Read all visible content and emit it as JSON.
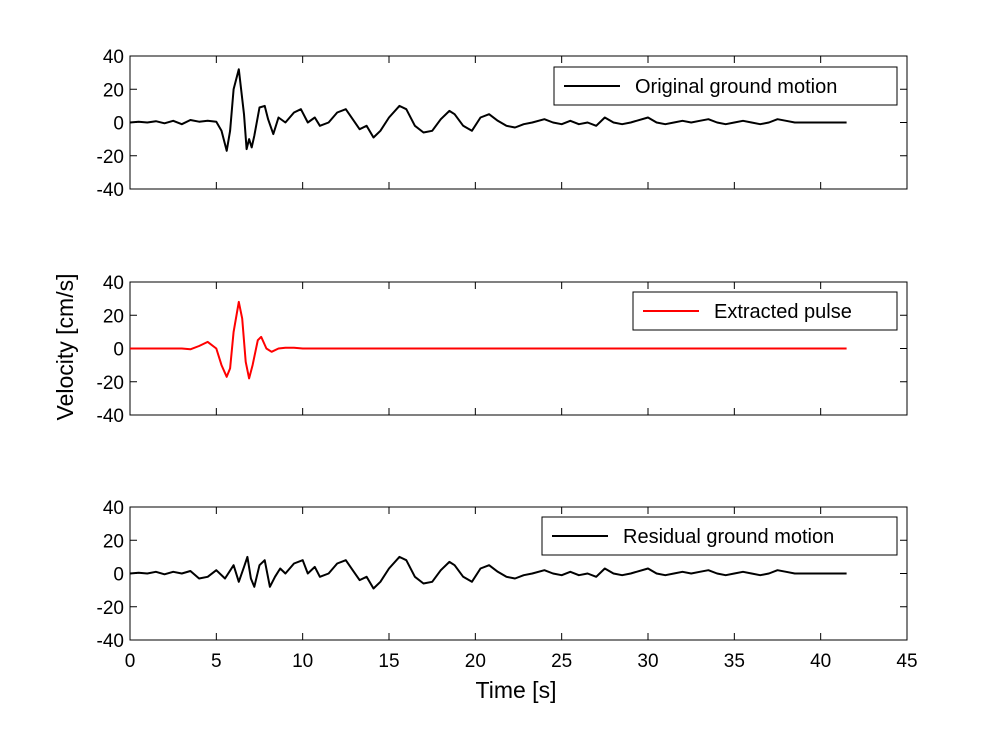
{
  "chart_data": {
    "type": "line",
    "xlabel": "Time [s]",
    "ylabel": "Velocity [cm/s]",
    "xlim": [
      0,
      45
    ],
    "xticks": [
      0,
      5,
      10,
      15,
      20,
      25,
      30,
      35,
      40,
      45
    ],
    "ylim": [
      -40,
      40
    ],
    "yticks": [
      40,
      20,
      0,
      -20,
      -40
    ],
    "grid": false,
    "panels": [
      {
        "legend": "Original ground motion",
        "color": "#000000",
        "x": [
          0,
          0.5,
          1,
          1.5,
          2,
          2.5,
          3,
          3.5,
          4,
          4.5,
          5,
          5.3,
          5.6,
          5.8,
          6.0,
          6.3,
          6.6,
          6.75,
          6.9,
          7.05,
          7.2,
          7.5,
          7.8,
          8.0,
          8.3,
          8.6,
          9.0,
          9.5,
          9.9,
          10.3,
          10.7,
          11.0,
          11.5,
          12.0,
          12.5,
          12.9,
          13.3,
          13.7,
          14.1,
          14.5,
          15.0,
          15.6,
          16.0,
          16.5,
          17.0,
          17.5,
          18.0,
          18.5,
          18.8,
          19.3,
          19.8,
          20.3,
          20.8,
          21.3,
          21.8,
          22.3,
          22.8,
          23.3,
          24.0,
          24.5,
          25.0,
          25.5,
          26.0,
          26.5,
          27.0,
          27.5,
          28.0,
          28.5,
          29.0,
          30.0,
          30.5,
          31.0,
          31.5,
          32.0,
          32.5,
          33.0,
          33.5,
          34.0,
          34.5,
          35.0,
          35.5,
          36.0,
          36.5,
          37.0,
          37.5,
          38.0,
          38.5,
          39.0,
          39.5,
          40.0,
          40.5,
          41.0,
          41.5
        ],
        "y": [
          0,
          0.5,
          0,
          0.8,
          -0.5,
          1,
          -1,
          1.5,
          0.5,
          1,
          0.5,
          -5,
          -17,
          -5,
          20,
          32,
          5,
          -16,
          -10,
          -15,
          -8,
          9,
          10,
          2,
          -7,
          3,
          0,
          6,
          8,
          0,
          3,
          -2,
          0,
          6,
          8,
          2,
          -4,
          -2,
          -9,
          -5,
          3,
          10,
          8,
          -2,
          -6,
          -5,
          2,
          7,
          5,
          -2,
          -5,
          3,
          5,
          1,
          -2,
          -3,
          -1,
          0,
          2,
          0,
          -1,
          1,
          -1,
          0,
          -2,
          3,
          0,
          -1,
          0,
          3,
          0,
          -1,
          0,
          1,
          0,
          1,
          2,
          0,
          -1,
          0,
          1,
          0,
          -1,
          0,
          2,
          1,
          0,
          0,
          0,
          0,
          0,
          0,
          0
        ]
      },
      {
        "legend": "Extracted pulse",
        "color": "#ff0000",
        "x": [
          0,
          1,
          2,
          3,
          3.5,
          4,
          4.5,
          5.0,
          5.3,
          5.6,
          5.8,
          6.0,
          6.3,
          6.5,
          6.7,
          6.9,
          7.1,
          7.4,
          7.6,
          7.9,
          8.2,
          8.6,
          9.0,
          9.5,
          10,
          15,
          20,
          25,
          30,
          35,
          41.5
        ],
        "y": [
          0,
          0,
          0,
          0,
          -0.5,
          1.5,
          4,
          0,
          -10,
          -17,
          -12,
          10,
          28,
          18,
          -8,
          -18,
          -10,
          5,
          7,
          0,
          -2,
          0,
          0.5,
          0.5,
          0,
          0,
          0,
          0,
          0,
          0,
          0
        ]
      },
      {
        "legend": "Residual ground motion",
        "color": "#000000",
        "x": [
          0,
          0.5,
          1,
          1.5,
          2,
          2.5,
          3,
          3.5,
          4,
          4.5,
          5,
          5.5,
          6.0,
          6.3,
          6.6,
          6.8,
          7.0,
          7.2,
          7.5,
          7.8,
          8.1,
          8.4,
          8.7,
          9.0,
          9.5,
          10.0,
          10.3,
          10.7,
          11.0,
          11.5,
          12.0,
          12.5,
          12.9,
          13.3,
          13.7,
          14.1,
          14.5,
          15.0,
          15.6,
          16.0,
          16.5,
          17.0,
          17.5,
          18.0,
          18.5,
          18.8,
          19.3,
          19.8,
          20.3,
          20.8,
          21.3,
          21.8,
          22.3,
          22.8,
          23.3,
          24.0,
          24.5,
          25.0,
          25.5,
          26.0,
          26.5,
          27.0,
          27.5,
          28.0,
          28.5,
          29.0,
          30.0,
          30.5,
          31.0,
          31.5,
          32.0,
          32.5,
          33.0,
          33.5,
          34.0,
          34.5,
          35.0,
          35.5,
          36.0,
          36.5,
          37.0,
          37.5,
          38.0,
          38.5,
          39.0,
          39.5,
          40.0,
          40.5,
          41.0,
          41.5
        ],
        "y": [
          0,
          0.5,
          0,
          1,
          -0.5,
          1,
          0,
          1.5,
          -3,
          -2,
          2,
          -3,
          5,
          -5,
          4,
          10,
          -3,
          -8,
          5,
          8,
          -8,
          -2,
          3,
          0,
          6,
          8,
          0,
          4,
          -2,
          0,
          6,
          8,
          2,
          -4,
          -2,
          -9,
          -5,
          3,
          10,
          8,
          -2,
          -6,
          -5,
          2,
          7,
          5,
          -2,
          -5,
          3,
          5,
          1,
          -2,
          -3,
          -1,
          0,
          2,
          0,
          -1,
          1,
          -1,
          0,
          -2,
          3,
          0,
          -1,
          0,
          3,
          0,
          -1,
          0,
          1,
          0,
          1,
          2,
          0,
          -1,
          0,
          1,
          0,
          -1,
          0,
          2,
          1,
          0,
          0,
          0,
          0,
          0,
          0,
          0
        ]
      }
    ]
  }
}
